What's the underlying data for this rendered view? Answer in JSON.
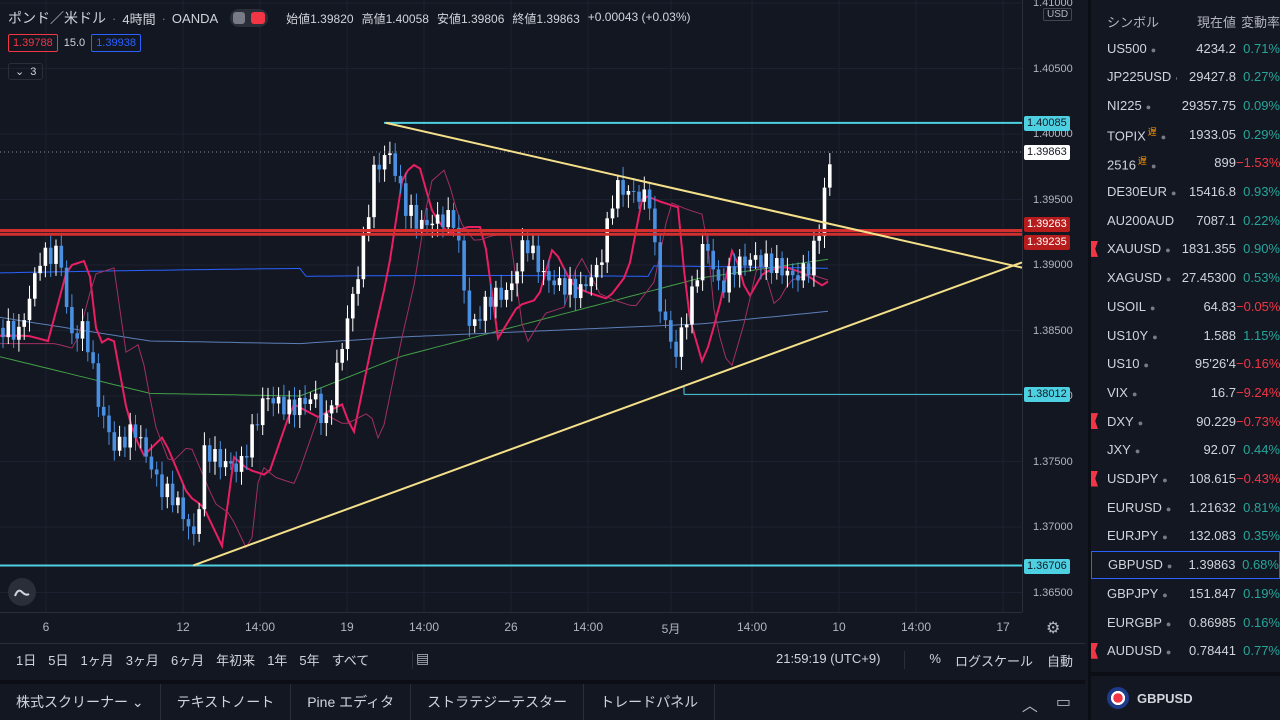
{
  "header": {
    "symbol": "ポンド／米ドル",
    "interval": "4時間",
    "exchange": "OANDA",
    "ohlc": [
      {
        "k": "始値",
        "v": "1.39820"
      },
      {
        "k": "高値",
        "v": "1.40058"
      },
      {
        "k": "安値",
        "v": "1.39806"
      },
      {
        "k": "終値",
        "v": "1.39863"
      },
      {
        "k": "",
        "v": "+0.00043 (+0.03%)"
      }
    ],
    "bid": "1.39788",
    "spread": "15.0",
    "ask": "1.39938",
    "indicators_count": "3"
  },
  "price_scale": {
    "currency": "USD",
    "ticks": [
      "1.41000",
      "1.40500",
      "1.40000",
      "1.39500",
      "1.39000",
      "1.38500",
      "1.38000",
      "1.37500",
      "1.37000",
      "1.36500"
    ],
    "labels": [
      {
        "text": "1.40085",
        "bg": "#4dd0e1",
        "fg": "#131722"
      },
      {
        "text": "1.39863",
        "bg": "#ffffff",
        "fg": "#131722"
      },
      {
        "text": "1.39263",
        "bg": "#b71c1c",
        "fg": "#ffffff"
      },
      {
        "text": "1.39235",
        "bg": "#b71c1c",
        "fg": "#ffffff"
      },
      {
        "text": "1.38012",
        "bg": "#4dd0e1",
        "fg": "#131722"
      },
      {
        "text": "1.36706",
        "bg": "#4dd0e1",
        "fg": "#131722"
      }
    ]
  },
  "time_axis": {
    "ticks": [
      "6",
      "12",
      "14:00",
      "19",
      "14:00",
      "26",
      "14:00",
      "5月",
      "14:00",
      "10",
      "14:00",
      "17"
    ]
  },
  "range_bar": {
    "ranges": [
      "1日",
      "5日",
      "1ヶ月",
      "3ヶ月",
      "6ヶ月",
      "年初来",
      "1年",
      "5年",
      "すべて"
    ],
    "clock": "21:59:19 (UTC+9)",
    "percent": "%",
    "log": "ログスケール",
    "auto": "自動"
  },
  "bottom_tabs": [
    "株式スクリーナー",
    "テキストノート",
    "Pine エディタ",
    "ストラテジーテスター",
    "トレードパネル"
  ],
  "watchlist": {
    "headers": {
      "symbol": "シンボル",
      "last": "現在値",
      "change": "変動率"
    },
    "rows": [
      {
        "symbol": "US500",
        "last": "4234.2",
        "change": "0.71%",
        "dir": "up",
        "flag": false
      },
      {
        "symbol": "JP225USD",
        "last": "29427.8",
        "change": "0.27%",
        "dir": "up",
        "flag": false
      },
      {
        "symbol": "NI225",
        "last": "29357.75",
        "change": "0.09%",
        "dir": "up",
        "flag": false
      },
      {
        "symbol": "TOPIX",
        "last": "1933.05",
        "change": "0.29%",
        "dir": "up",
        "flag": false,
        "delay": "遅"
      },
      {
        "symbol": "2516",
        "last": "899",
        "change": "−1.53%",
        "dir": "down",
        "flag": false,
        "delay": "遅"
      },
      {
        "symbol": "DE30EUR",
        "last": "15416.8",
        "change": "0.93%",
        "dir": "up",
        "flag": false
      },
      {
        "symbol": "AU200AUD",
        "last": "7087.1",
        "change": "0.22%",
        "dir": "up",
        "flag": false
      },
      {
        "symbol": "XAUUSD",
        "last": "1831.355",
        "change": "0.90%",
        "dir": "up",
        "flag": true
      },
      {
        "symbol": "XAGUSD",
        "last": "27.45300",
        "change": "0.53%",
        "dir": "up",
        "flag": false
      },
      {
        "symbol": "USOIL",
        "last": "64.83",
        "change": "−0.05%",
        "dir": "down",
        "flag": false
      },
      {
        "symbol": "US10Y",
        "last": "1.588",
        "change": "1.15%",
        "dir": "up",
        "flag": false
      },
      {
        "symbol": "US10",
        "last": "95'26'4",
        "change": "−0.16%",
        "dir": "down",
        "flag": false
      },
      {
        "symbol": "VIX",
        "last": "16.7",
        "change": "−9.24%",
        "dir": "down",
        "flag": false
      },
      {
        "symbol": "DXY",
        "last": "90.229",
        "change": "−0.73%",
        "dir": "down",
        "flag": true
      },
      {
        "symbol": "JXY",
        "last": "92.07",
        "change": "0.44%",
        "dir": "up",
        "flag": false
      },
      {
        "symbol": "USDJPY",
        "last": "108.615",
        "change": "−0.43%",
        "dir": "down",
        "flag": true
      },
      {
        "symbol": "EURUSD",
        "last": "1.21632",
        "change": "0.81%",
        "dir": "up",
        "flag": false
      },
      {
        "symbol": "EURJPY",
        "last": "132.083",
        "change": "0.35%",
        "dir": "up",
        "flag": false
      },
      {
        "symbol": "GBPUSD",
        "last": "1.39863",
        "change": "0.68%",
        "dir": "up",
        "flag": false,
        "selected": true
      },
      {
        "symbol": "GBPJPY",
        "last": "151.847",
        "change": "0.19%",
        "dir": "up",
        "flag": false
      },
      {
        "symbol": "EURGBP",
        "last": "0.86985",
        "change": "0.16%",
        "dir": "up",
        "flag": false
      },
      {
        "symbol": "AUDUSD",
        "last": "0.78441",
        "change": "0.77%",
        "dir": "up",
        "flag": true
      }
    ],
    "footer_symbol": "GBPUSD"
  },
  "colors": {
    "up": "#26a69a",
    "down": "#f23645",
    "resistance": "#d32f2f",
    "level": "#4dd0e1",
    "trendline": "#f5e08a"
  }
}
